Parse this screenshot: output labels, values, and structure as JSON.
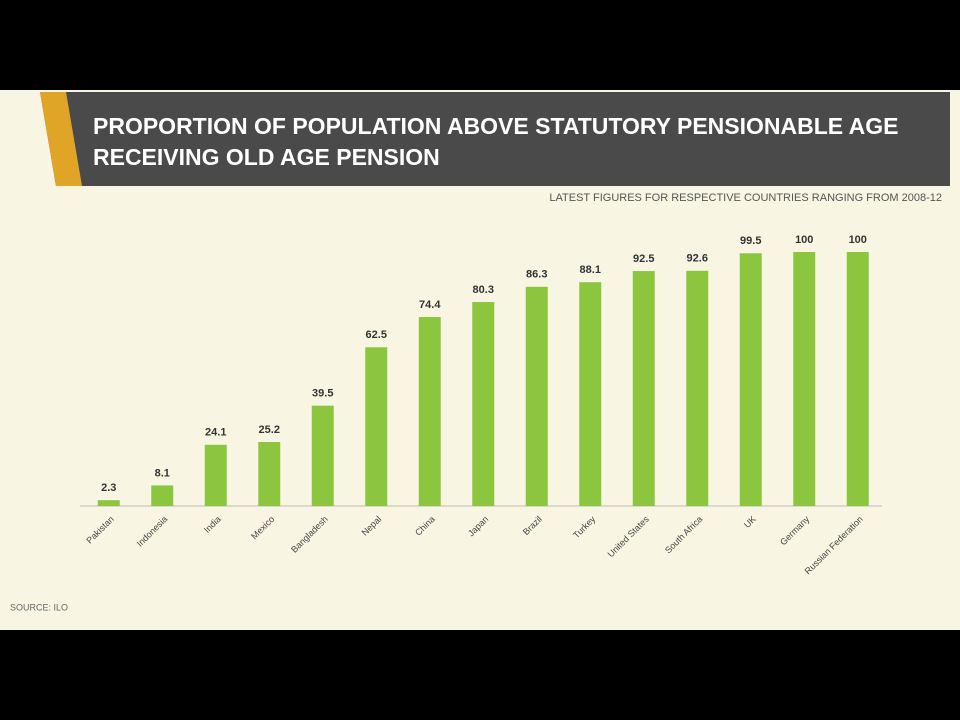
{
  "chart_data": {
    "type": "bar",
    "title": "PROPORTION OF POPULATION ABOVE STATUTORY PENSIONABLE AGE RECEIVING OLD AGE PENSION",
    "subtitle": "LATEST FIGURES FOR RESPECTIVE COUNTRIES RANGING FROM 2008-12",
    "categories": [
      "Pakistan",
      "Indonesia",
      "India",
      "Mexico",
      "Bangladesh",
      "Nepal",
      "China",
      "Japan",
      "Brazil",
      "Turkey",
      "United States",
      "South Africa",
      "UK",
      "Germany",
      "Russian Federation"
    ],
    "values": [
      2.3,
      8.1,
      24.1,
      25.2,
      39.5,
      62.5,
      74.4,
      80.3,
      86.3,
      88.1,
      92.5,
      92.6,
      99.5,
      100,
      100
    ],
    "color": "#8cc63f",
    "source": "SOURCE: ILO"
  }
}
